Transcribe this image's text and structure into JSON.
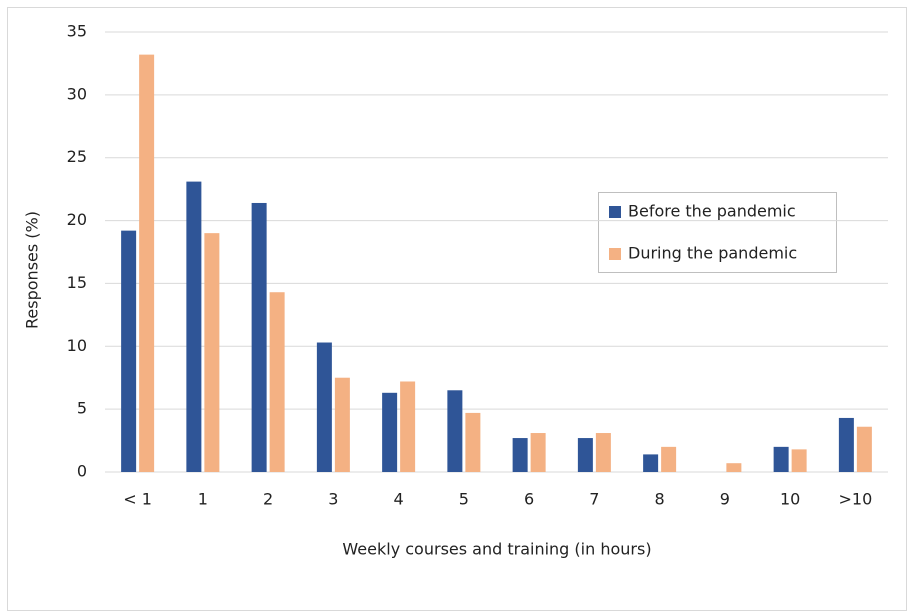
{
  "chart_data": {
    "type": "bar",
    "xlabel": "Weekly courses and training (in hours)",
    "ylabel": "Responses (%)",
    "categories": [
      "< 1",
      "1",
      "2",
      "3",
      "4",
      "5",
      "6",
      "7",
      "8",
      "9",
      "10",
      ">10"
    ],
    "series": [
      {
        "name": "Before the pandemic",
        "color": "#2f5597",
        "values": [
          19.2,
          23.1,
          21.4,
          10.3,
          6.3,
          6.5,
          2.7,
          2.7,
          1.4,
          0,
          2.0,
          4.3
        ]
      },
      {
        "name": "During the pandemic",
        "color": "#f4b183",
        "values": [
          33.2,
          19.0,
          14.3,
          7.5,
          7.2,
          4.7,
          3.1,
          3.1,
          2.0,
          0.7,
          1.8,
          3.6
        ]
      }
    ],
    "ylim": [
      0,
      35
    ],
    "yticks": [
      0,
      5,
      10,
      15,
      20,
      25,
      30,
      35
    ],
    "grid": true
  }
}
